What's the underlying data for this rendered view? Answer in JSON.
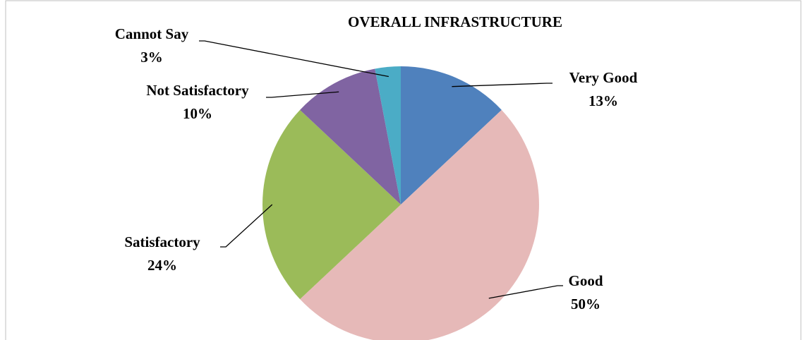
{
  "chart_data": {
    "type": "pie",
    "title": "OVERALL INFRASTRUCTURE",
    "categories": [
      "Very Good",
      "Good",
      "Satisfactory",
      "Not Satisfactory",
      "Cannot Say"
    ],
    "values": [
      13,
      50,
      24,
      10,
      3
    ],
    "value_labels": [
      "13%",
      "50%",
      "24%",
      "10%",
      "3%"
    ],
    "colors": [
      "#4f81bd",
      "#e6b9b8",
      "#9bbb59",
      "#8064a2",
      "#4bacc6"
    ]
  }
}
